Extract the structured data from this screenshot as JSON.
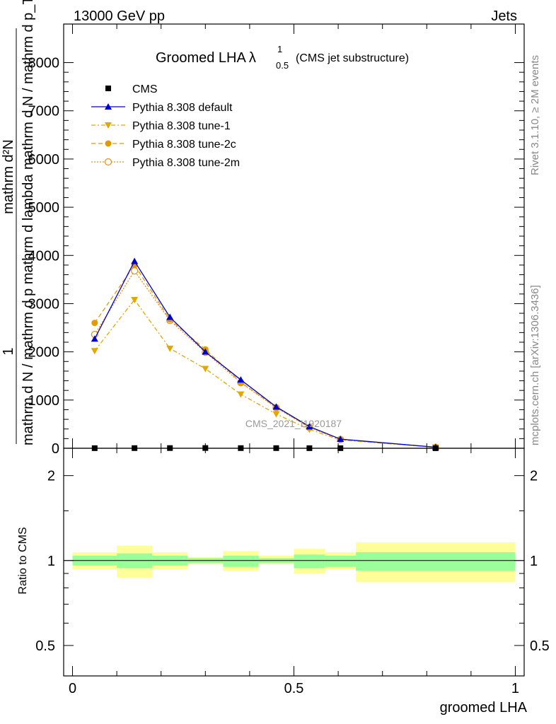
{
  "header": {
    "left": "13000 GeV pp",
    "right": "Jets"
  },
  "title": {
    "main": "Groomed LHA",
    "lambda": "λ",
    "sup": "1",
    "sub": "0.5",
    "suffix": "(CMS jet substructure)"
  },
  "side_labels": {
    "rivet": "Rivet 3.1.10, ≥ 2M events",
    "mcplots": "mcplots.cern.ch [arXiv:1306.3436]"
  },
  "watermark": "CMS_2021_I1920187",
  "main_ylabel": {
    "numerator": "1",
    "denominator": "mathrm d N / mathrm d p",
    "fraction_line": "mathrm d N / mathrm d p mathrm d lambda",
    "ylabel_top": "mathrm d²N",
    "ylabel_bottom": "mathrm d p_T mathrm d lambda",
    "garbled_1": "mathrm d N / mathrm d p mathrm d lambda",
    "garbled_2": "mathrm d N / mathrm d p_T mathrm d lambda"
  },
  "ratio_ylabel": "Ratio to CMS",
  "xlabel": "groomed LHA",
  "colors": {
    "cms": "#000000",
    "pythia_default": "#0000cc",
    "pythia_tune1": "#e0a800",
    "pythia_tune2c": "#e09b00",
    "pythia_tune2m": "#e0901a",
    "band_inner": "#99ff99",
    "band_outer": "#ffff99"
  },
  "legend": [
    {
      "label": "CMS",
      "marker": "square"
    },
    {
      "label": "Pythia 8.308 default",
      "marker": "triangle-up"
    },
    {
      "label": "Pythia 8.308 tune-1",
      "marker": "triangle-down"
    },
    {
      "label": "Pythia 8.308 tune-2c",
      "marker": "circle"
    },
    {
      "label": "Pythia 8.308 tune-2m",
      "marker": "circle-open"
    }
  ],
  "chart_data": [
    {
      "type": "line",
      "panel": "main",
      "xlim": [
        -0.02,
        1.02
      ],
      "ylim": [
        0,
        8800
      ],
      "yticks": [
        0,
        1000,
        2000,
        3000,
        4000,
        5000,
        6000,
        7000,
        8000
      ],
      "ytick_labels": [
        "0",
        "1000",
        "2000",
        "3000",
        "4000",
        "5000",
        "6000",
        "7000",
        "8000"
      ],
      "x": [
        0.05,
        0.14,
        0.22,
        0.3,
        0.38,
        0.46,
        0.535,
        0.605,
        0.82
      ],
      "series": [
        {
          "name": "CMS",
          "values": [
            2,
            3,
            4,
            5,
            3,
            3,
            2,
            2,
            1
          ]
        },
        {
          "name": "Pythia 8.308 default",
          "values": [
            2270,
            3880,
            2720,
            2000,
            1420,
            860,
            450,
            190,
            22
          ]
        },
        {
          "name": "Pythia 8.308 tune-1",
          "values": [
            2020,
            3080,
            2070,
            1650,
            1120,
            710,
            390,
            170,
            20
          ]
        },
        {
          "name": "Pythia 8.308 tune-2c",
          "values": [
            2600,
            3800,
            2670,
            2050,
            1370,
            850,
            440,
            185,
            21
          ]
        },
        {
          "name": "Pythia 8.308 tune-2m",
          "values": [
            2360,
            3680,
            2650,
            1990,
            1360,
            840,
            430,
            182,
            21
          ]
        }
      ]
    },
    {
      "type": "area",
      "panel": "ratio",
      "xlim": [
        -0.02,
        1.02
      ],
      "ylim": [
        0.39,
        2.5
      ],
      "log_y": true,
      "yticks": [
        0.5,
        1,
        2
      ],
      "ytick_labels": [
        "0.5",
        "1",
        "2"
      ],
      "xticks": [
        0,
        0.5,
        1
      ],
      "xtick_labels": [
        "0",
        "0.5",
        "1"
      ],
      "bins": [
        {
          "lo": 0.0,
          "hi": 0.1,
          "inner": [
            0.96,
            1.04
          ],
          "outer": [
            0.93,
            1.07
          ]
        },
        {
          "lo": 0.1,
          "hi": 0.18,
          "inner": [
            0.94,
            1.06
          ],
          "outer": [
            0.87,
            1.13
          ]
        },
        {
          "lo": 0.18,
          "hi": 0.26,
          "inner": [
            0.96,
            1.04
          ],
          "outer": [
            0.93,
            1.07
          ]
        },
        {
          "lo": 0.26,
          "hi": 0.34,
          "inner": [
            0.98,
            1.02
          ],
          "outer": [
            0.97,
            1.03
          ]
        },
        {
          "lo": 0.34,
          "hi": 0.42,
          "inner": [
            0.95,
            1.04
          ],
          "outer": [
            0.92,
            1.08
          ]
        },
        {
          "lo": 0.42,
          "hi": 0.5,
          "inner": [
            0.98,
            1.02
          ],
          "outer": [
            0.97,
            1.04
          ]
        },
        {
          "lo": 0.5,
          "hi": 0.57,
          "inner": [
            0.94,
            1.05
          ],
          "outer": [
            0.9,
            1.1
          ]
        },
        {
          "lo": 0.57,
          "hi": 0.64,
          "inner": [
            0.95,
            1.04
          ],
          "outer": [
            0.93,
            1.07
          ]
        },
        {
          "lo": 0.64,
          "hi": 1.0,
          "inner": [
            0.92,
            1.07
          ],
          "outer": [
            0.84,
            1.16
          ]
        }
      ]
    }
  ]
}
